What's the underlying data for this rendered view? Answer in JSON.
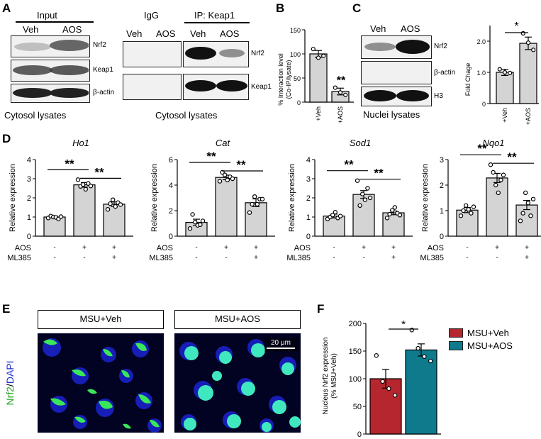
{
  "panels": {
    "A": "A",
    "B": "B",
    "C": "C",
    "D": "D",
    "E": "E",
    "F": "F"
  },
  "panelA": {
    "input_title": "Input",
    "veh": "Veh",
    "aos": "AOS",
    "igg": "IgG",
    "ip_title": "IP: Keap1",
    "rows": [
      "Nrf2",
      "Keap1",
      "β-actin"
    ],
    "ip_rows": [
      "Nrf2",
      "Keap1"
    ],
    "caption_left": "Cytosol lysates",
    "caption_right": "Cytosol lysates"
  },
  "panelB": {
    "ylabel1": "% Interaction level",
    "ylabel2": "(Co-IP/lysate)",
    "chart_data": {
      "type": "bar",
      "categories": [
        "+Veh",
        "+AOS"
      ],
      "values": [
        100,
        22
      ],
      "errors": [
        7,
        7
      ],
      "points": [
        [
          110,
          92,
          96
        ],
        [
          30,
          20,
          15
        ]
      ],
      "ylim": [
        0,
        150
      ],
      "yticks": [
        0,
        50,
        100,
        150
      ],
      "xlabel": "",
      "ylabel": "% Interaction level (Co-IP/lysate)",
      "significance": "**"
    }
  },
  "panelC": {
    "veh": "Veh",
    "aos": "AOS",
    "rows": [
      "Nrf2",
      "β-actin",
      "H3"
    ],
    "caption": "Nuclei lysates",
    "chart_data": {
      "type": "bar",
      "categories": [
        "+Veh",
        "+AOS"
      ],
      "values": [
        1.0,
        1.93
      ],
      "errors": [
        0.1,
        0.2
      ],
      "points": [
        [
          1.1,
          1.0,
          0.98
        ],
        [
          2.25,
          1.95,
          1.72
        ]
      ],
      "ylim": [
        0,
        2.5
      ],
      "yticks": [
        "0",
        "1.0",
        "2.0"
      ],
      "ylabel": "Fold Chage",
      "significance": "*"
    }
  },
  "panelD": {
    "charts": [
      {
        "title": "Ho1",
        "ylabel": "Relative expression",
        "ylim": [
          0,
          4
        ],
        "yticks": [
          0,
          1,
          2,
          3,
          4
        ],
        "values": [
          1.0,
          2.68,
          1.67
        ],
        "errors": [
          0.05,
          0.12,
          0.12
        ],
        "points": [
          [
            0.95,
            1.05,
            1.0,
            0.98,
            0.9,
            1.02
          ],
          [
            2.95,
            2.6,
            2.7,
            2.45,
            2.75,
            2.62
          ],
          [
            1.4,
            1.7,
            1.9,
            1.55,
            1.75,
            1.65
          ]
        ],
        "sig": [
          "**",
          "**"
        ]
      },
      {
        "title": "Cat",
        "ylabel": "Relative expression",
        "ylim": [
          0,
          6
        ],
        "yticks": [
          0,
          2,
          4,
          6
        ],
        "values": [
          1.08,
          4.6,
          2.62
        ],
        "errors": [
          0.25,
          0.18,
          0.3
        ],
        "points": [
          [
            0.6,
            1.7,
            1.1,
            0.85,
            0.9,
            1.2
          ],
          [
            4.3,
            5.0,
            4.8,
            4.4,
            4.65,
            4.5
          ],
          [
            1.85,
            2.5,
            3.1,
            2.5,
            2.9,
            2.9
          ]
        ],
        "sig": [
          "**",
          "**"
        ]
      },
      {
        "title": "Sod1",
        "ylabel": "Relative expression",
        "ylim": [
          0,
          4
        ],
        "yticks": [
          0,
          1,
          2,
          3,
          4
        ],
        "values": [
          1.05,
          2.18,
          1.22
        ],
        "errors": [
          0.1,
          0.2,
          0.1
        ],
        "points": [
          [
            0.9,
            1.0,
            1.1,
            1.25,
            0.95,
            1.05
          ],
          [
            2.9,
            1.6,
            2.2,
            1.9,
            2.5,
            2.0
          ],
          [
            0.95,
            1.15,
            1.35,
            1.5,
            1.2,
            1.1
          ]
        ],
        "sig": [
          "**",
          "**"
        ]
      },
      {
        "title": "Nqo1",
        "ylabel": "Relative expression",
        "ylim": [
          0,
          3
        ],
        "yticks": [
          0,
          1,
          2,
          3
        ],
        "values": [
          1.02,
          2.28,
          1.22
        ],
        "errors": [
          0.1,
          0.18,
          0.18
        ],
        "points": [
          [
            0.8,
            1.0,
            1.2,
            1.05,
            0.9,
            1.15
          ],
          [
            2.8,
            2.5,
            2.0,
            1.7,
            2.2,
            2.4
          ],
          [
            0.6,
            0.9,
            1.7,
            1.3,
            0.8,
            1.45
          ]
        ],
        "sig": [
          "**",
          "**"
        ]
      }
    ],
    "row_aos": "AOS",
    "row_ml": "ML385",
    "aos_signs": [
      "-",
      "+",
      "+"
    ],
    "ml_signs": [
      "-",
      "-",
      "+"
    ]
  },
  "panelE": {
    "label1": "MSU+Veh",
    "label2": "MSU+AOS",
    "scalebar": "20 μm",
    "ylabel_nrf2": "Nrf2",
    "ylabel_slash": "/",
    "ylabel_dapi": "DAPI"
  },
  "panelF": {
    "ylabel1": "Nucleus Nrf2 expression",
    "ylabel2": "(% MSU+Veh)",
    "legend": [
      "MSU+Veh",
      "MSU+AOS"
    ],
    "colors": {
      "veh": "#b5262e",
      "aos": "#0e7a8c"
    },
    "chart_data": {
      "type": "bar",
      "categories": [
        "MSU+Veh",
        "MSU+AOS"
      ],
      "values": [
        100,
        152
      ],
      "errors": [
        17,
        11
      ],
      "points": [
        [
          142,
          95,
          82,
          70
        ],
        [
          188,
          155,
          140,
          132
        ]
      ],
      "ylim": [
        0,
        200
      ],
      "yticks": [
        0,
        50,
        100,
        150,
        200
      ],
      "ylabel": "Nucleus Nrf2 expression (% MSU+Veh)",
      "significance": "*"
    }
  }
}
